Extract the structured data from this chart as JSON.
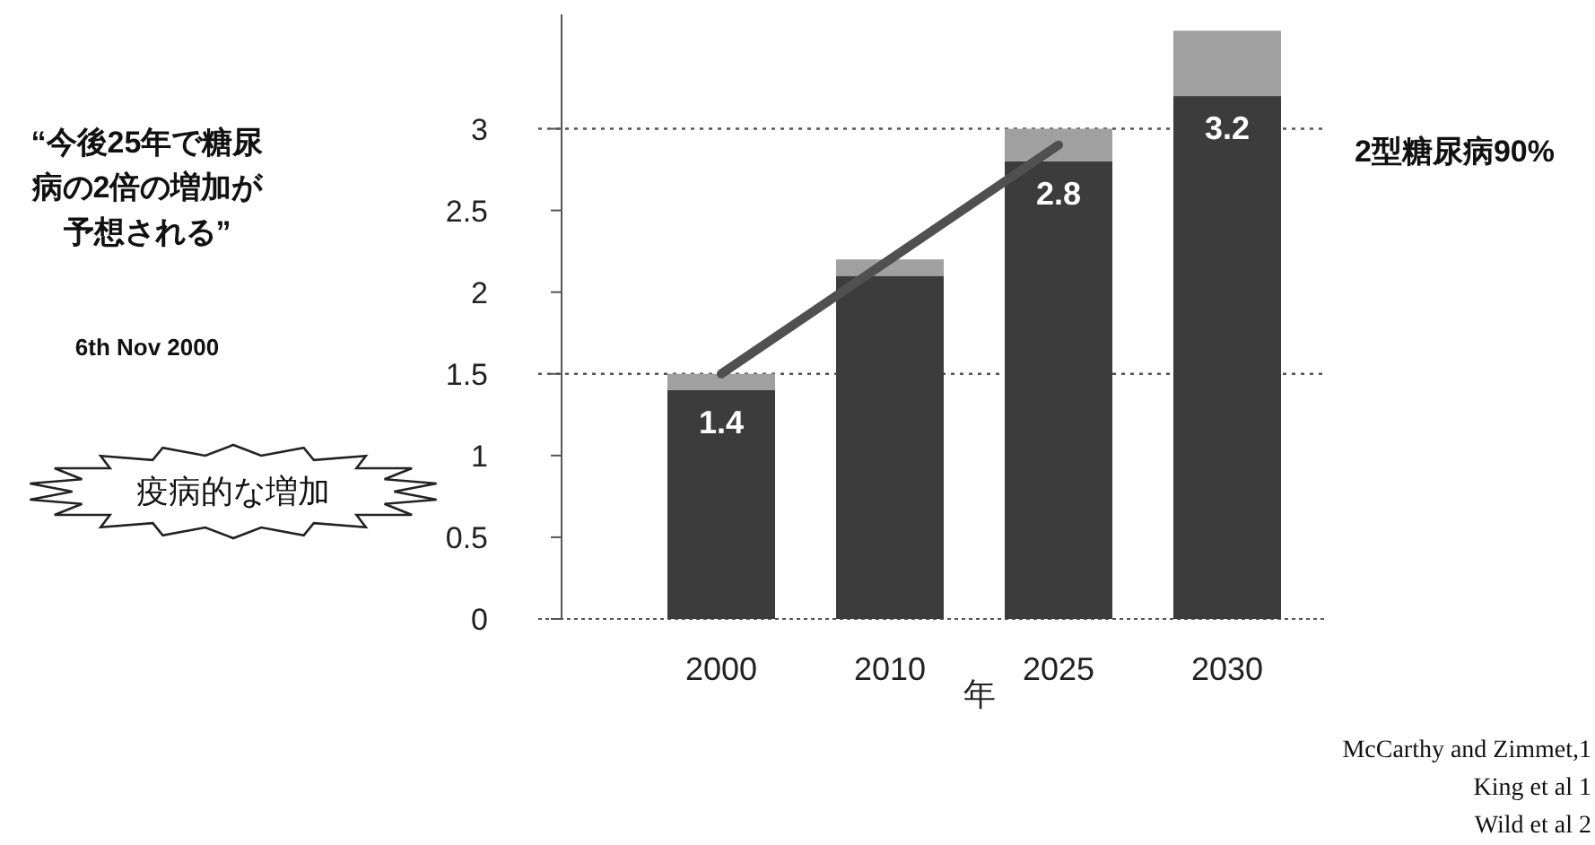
{
  "chart_data": {
    "type": "bar",
    "stacked": true,
    "categories": [
      "2000",
      "2010",
      "2025",
      "2030"
    ],
    "xlabel": "年",
    "ylim": [
      0,
      3.7
    ],
    "yticks": [
      0,
      0.5,
      1,
      1.5,
      2,
      2.5,
      3
    ],
    "grid": false,
    "series": [
      {
        "color": "#3c3c3c",
        "values": [
          1.4,
          2.1,
          2.8,
          3.2
        ],
        "value_labels": [
          "1.4",
          null,
          "2.8",
          "3.2"
        ]
      },
      {
        "color": "#a0a0a0",
        "values": [
          0.1,
          0.1,
          0.2,
          0.4
        ]
      },
      {
        "type": "line",
        "color": "#505050",
        "values": [
          1.5,
          null,
          2.9,
          null
        ]
      }
    ],
    "ref_lines": [
      {
        "axis": "y",
        "value": 1.5,
        "line_style": "dotted"
      },
      {
        "axis": "y",
        "value": 3,
        "line_style": "dotted"
      }
    ],
    "annotations": [
      "“今後25年で糖尿病の2倍の増加が予想される”",
      "6th Nov 2000",
      "疫病的な増加",
      "2型糖尿病90%",
      "McCarthy and Zimmet,1",
      "King et al 1",
      "Wild et al 2"
    ]
  }
}
